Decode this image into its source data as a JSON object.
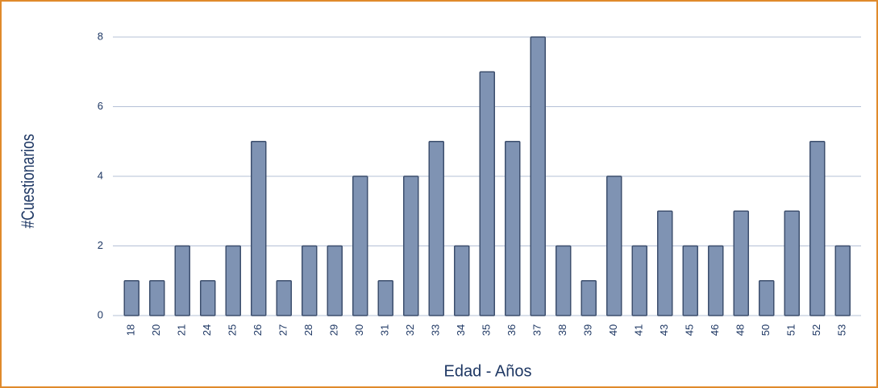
{
  "chart_data": {
    "type": "bar",
    "xlabel": "Edad - Años",
    "ylabel": "#Cuestionarios",
    "categories": [
      "18",
      "20",
      "21",
      "24",
      "25",
      "26",
      "27",
      "28",
      "29",
      "30",
      "31",
      "32",
      "33",
      "34",
      "35",
      "36",
      "37",
      "38",
      "39",
      "40",
      "41",
      "43",
      "45",
      "46",
      "48",
      "50",
      "51",
      "52",
      "53"
    ],
    "values": [
      1,
      1,
      2,
      1,
      2,
      5,
      1,
      2,
      2,
      4,
      1,
      4,
      5,
      2,
      7,
      5,
      8,
      2,
      1,
      4,
      2,
      3,
      2,
      2,
      3,
      1,
      3,
      5,
      2
    ],
    "color": "#7f93b3",
    "ylim": [
      0,
      8
    ],
    "yticks": [
      0,
      2,
      4,
      6,
      8
    ],
    "grid": true
  }
}
